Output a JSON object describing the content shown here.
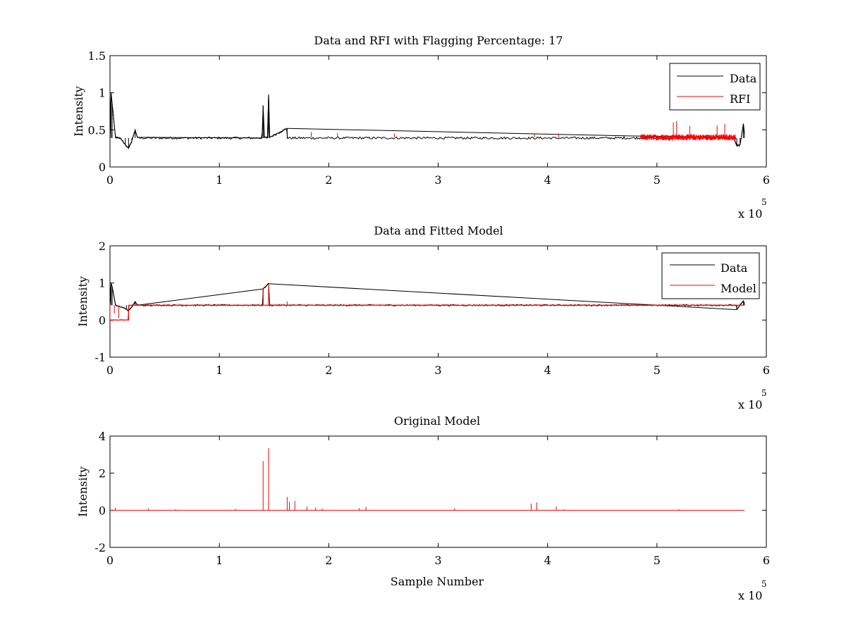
{
  "figure": {
    "background": "#ffffff",
    "colors": {
      "data": "#000000",
      "rfi": "#ff0000",
      "model": "#ff0000",
      "axes": "#000000"
    }
  },
  "chart_data": [
    {
      "type": "line",
      "title": "Data and RFI with Flagging Percentage: 17",
      "xlabel": "",
      "ylabel": "Intensity",
      "xlim": [
        0,
        6
      ],
      "ylim": [
        0,
        1.5
      ],
      "x_multiplier": "x 10",
      "x_multiplier_exp": "5",
      "xticks": [
        "0",
        "1",
        "2",
        "3",
        "4",
        "5",
        "6"
      ],
      "yticks": [
        "0",
        "0.5",
        "1",
        "1.5"
      ],
      "ytick_values": [
        0,
        0.5,
        1,
        1.5
      ],
      "grid": false,
      "legend_position": "top-right",
      "series": [
        {
          "name": "Data",
          "color": "#000000",
          "baseline": 0.39,
          "noise": 0.015,
          "points": [
            [
              0,
              0.42
            ],
            [
              0.01,
              1.0
            ],
            [
              0.02,
              0.85
            ],
            [
              0.05,
              0.4
            ],
            [
              0.1,
              0.38
            ],
            [
              0.14,
              0.3
            ],
            [
              0.17,
              0.25
            ],
            [
              0.2,
              0.35
            ],
            [
              0.23,
              0.5
            ],
            [
              0.25,
              0.4
            ],
            [
              1.39,
              0.39
            ],
            [
              1.4,
              0.83
            ],
            [
              1.41,
              0.4
            ],
            [
              1.44,
              0.39
            ],
            [
              1.45,
              0.97
            ],
            [
              1.46,
              0.4
            ],
            [
              1.62,
              0.52
            ],
            [
              4.7,
              0.42
            ],
            [
              5.7,
              0.4
            ],
            [
              5.73,
              0.28
            ],
            [
              5.76,
              0.3
            ],
            [
              5.79,
              0.58
            ],
            [
              5.8,
              0.44
            ]
          ],
          "x_range": [
            0,
            5.8
          ]
        },
        {
          "name": "RFI",
          "color": "#ff0000",
          "baseline": 0.4,
          "noise": 0.04,
          "x_range": [
            4.85,
            5.72
          ],
          "spikes": [
            [
              1.84,
              0.47
            ],
            [
              2.08,
              0.46
            ],
            [
              2.6,
              0.45
            ],
            [
              3.88,
              0.44
            ],
            [
              4.1,
              0.45
            ],
            [
              5.15,
              0.6
            ],
            [
              5.18,
              0.62
            ],
            [
              5.3,
              0.55
            ],
            [
              5.55,
              0.56
            ],
            [
              5.62,
              0.58
            ]
          ]
        }
      ]
    },
    {
      "type": "line",
      "title": "Data and Fitted Model",
      "xlabel": "",
      "ylabel": "Intensity",
      "xlim": [
        0,
        6
      ],
      "ylim": [
        -1,
        2
      ],
      "x_multiplier": "x 10",
      "x_multiplier_exp": "5",
      "xticks": [
        "0",
        "1",
        "2",
        "3",
        "4",
        "5",
        "6"
      ],
      "yticks": [
        "-1",
        "0",
        "1",
        "2"
      ],
      "ytick_values": [
        -1,
        0,
        1,
        2
      ],
      "grid": false,
      "legend_position": "top-right",
      "series": [
        {
          "name": "Data",
          "color": "#000000",
          "baseline": 0.4,
          "noise": 0.02,
          "points": [
            [
              0,
              0.42
            ],
            [
              0.01,
              1.0
            ],
            [
              0.02,
              0.9
            ],
            [
              0.05,
              0.4
            ],
            [
              0.15,
              0.3
            ],
            [
              0.17,
              0.25
            ],
            [
              0.2,
              0.35
            ],
            [
              0.23,
              0.5
            ],
            [
              0.25,
              0.4
            ],
            [
              1.4,
              0.84
            ],
            [
              1.45,
              0.98
            ],
            [
              5.73,
              0.28
            ],
            [
              5.79,
              0.52
            ],
            [
              5.8,
              0.44
            ]
          ],
          "x_range": [
            0,
            5.8
          ]
        },
        {
          "name": "Model",
          "color": "#ff0000",
          "baseline": 0.4,
          "noise": 0.012,
          "points": [
            [
              0,
              0.0
            ],
            [
              0.17,
              0.0
            ],
            [
              0.17,
              0.4
            ],
            [
              5.8,
              0.4
            ]
          ],
          "x_range": [
            0,
            5.8
          ],
          "spikes": [
            [
              0.04,
              0.18
            ],
            [
              0.08,
              0.05
            ],
            [
              1.4,
              0.84
            ],
            [
              1.45,
              0.98
            ],
            [
              1.62,
              0.5
            ]
          ]
        }
      ]
    },
    {
      "type": "line",
      "title": "Original Model",
      "xlabel": "Sample Number",
      "ylabel": "Intensity",
      "xlim": [
        0,
        6
      ],
      "ylim": [
        -2,
        4
      ],
      "x_multiplier": "x 10",
      "x_multiplier_exp": "5",
      "xticks": [
        "0",
        "1",
        "2",
        "3",
        "4",
        "5",
        "6"
      ],
      "yticks": [
        "-2",
        "0",
        "2",
        "4"
      ],
      "ytick_values": [
        -2,
        0,
        2,
        4
      ],
      "grid": false,
      "legend_position": "none",
      "series": [
        {
          "color": "#ff0000",
          "baseline": 0.0,
          "x_range": [
            0,
            5.8
          ],
          "spikes": [
            [
              0.05,
              0.15
            ],
            [
              0.35,
              0.1
            ],
            [
              0.6,
              0.05
            ],
            [
              1.15,
              0.08
            ],
            [
              1.4,
              2.65
            ],
            [
              1.45,
              3.35
            ],
            [
              1.62,
              0.72
            ],
            [
              1.64,
              0.45
            ],
            [
              1.69,
              0.5
            ],
            [
              1.8,
              0.2
            ],
            [
              1.88,
              0.15
            ],
            [
              1.94,
              0.1
            ],
            [
              2.28,
              0.12
            ],
            [
              2.34,
              0.18
            ],
            [
              3.15,
              0.1
            ],
            [
              3.85,
              0.35
            ],
            [
              3.9,
              0.42
            ],
            [
              4.08,
              0.2
            ],
            [
              4.15,
              0.05
            ],
            [
              5.2,
              0.05
            ]
          ]
        }
      ]
    }
  ]
}
